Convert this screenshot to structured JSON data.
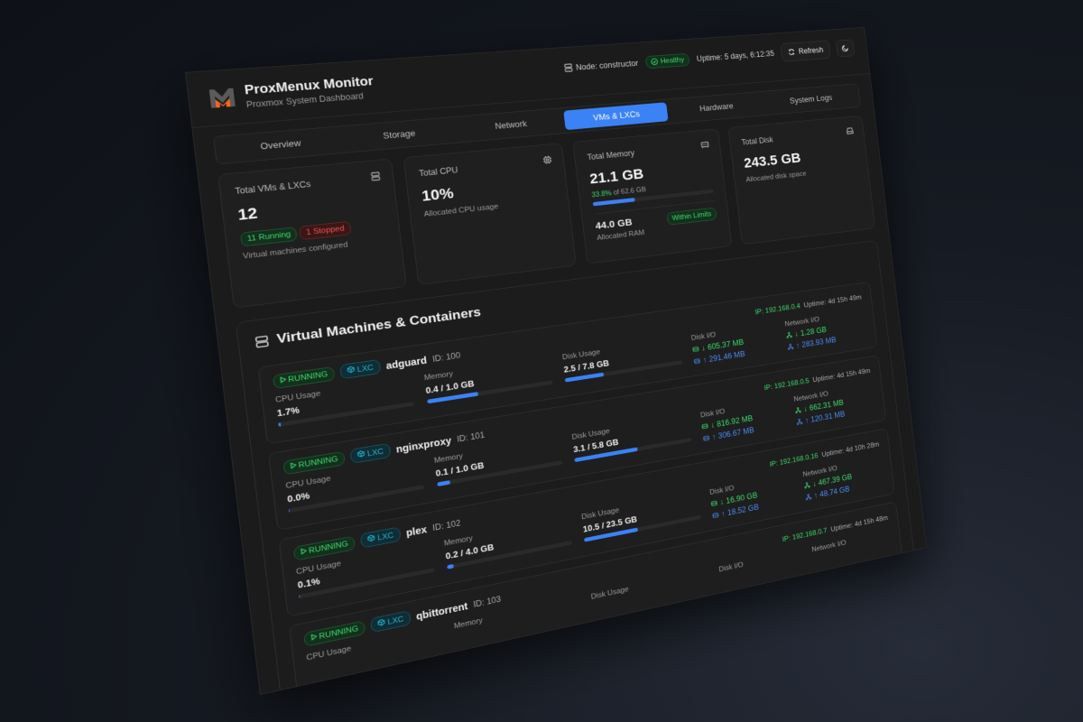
{
  "app": {
    "title": "ProxMenux Monitor",
    "subtitle": "Proxmox System Dashboard"
  },
  "header": {
    "node": "Node: constructor",
    "health": "Healthy",
    "uptime": "Uptime: 5 days, 6:12:35",
    "refresh": "Refresh"
  },
  "tabs": [
    {
      "label": "Overview"
    },
    {
      "label": "Storage"
    },
    {
      "label": "Network"
    },
    {
      "label": "VMs & LXCs",
      "active": true
    },
    {
      "label": "Hardware"
    },
    {
      "label": "System Logs"
    }
  ],
  "stats": {
    "vms": {
      "label": "Total VMs & LXCs",
      "value": "12",
      "running": "11 Running",
      "stopped": "1 Stopped",
      "note": "Virtual machines configured"
    },
    "cpu": {
      "label": "Total CPU",
      "value": "10%",
      "note": "Allocated CPU usage"
    },
    "memory": {
      "label": "Total Memory",
      "value": "21.1 GB",
      "pct_text": "33.8%",
      "of_text": " of 62.6 GB",
      "pct": 33.8,
      "allocated": "44.0 GB",
      "allocated_note": "Allocated RAM",
      "status": "Within Limits"
    },
    "disk": {
      "label": "Total Disk",
      "value": "243.5 GB",
      "note": "Allocated disk space"
    }
  },
  "panel": {
    "title": "Virtual Machines & Containers"
  },
  "labels": {
    "cpu": "CPU Usage",
    "memory": "Memory",
    "disk": "Disk Usage",
    "disk_io": "Disk I/O",
    "net_io": "Network I/O"
  },
  "vms": [
    {
      "status": "RUNNING",
      "type": "LXC",
      "name": "adguard",
      "id": "ID: 100",
      "ip": "IP: 192.168.0.4",
      "uptime": "Uptime: 4d 15h 49m",
      "cpu": "1.7%",
      "cpu_pct": 1.7,
      "mem": "0.4 / 1.0 GB",
      "mem_pct": 40,
      "disk": "2.5 / 7.8 GB",
      "disk_pct": 32,
      "disk_read": "605.37 MB",
      "disk_write": "291.46 MB",
      "net_in": "1.28 GB",
      "net_out": "283.93 MB"
    },
    {
      "status": "RUNNING",
      "type": "LXC",
      "name": "nginxproxy",
      "id": "ID: 101",
      "ip": "IP: 192.168.0.5",
      "uptime": "Uptime: 4d 15h 49m",
      "cpu": "0.0%",
      "cpu_pct": 0,
      "mem": "0.1 / 1.0 GB",
      "mem_pct": 10,
      "disk": "3.1 / 5.8 GB",
      "disk_pct": 53,
      "disk_read": "816.92 MB",
      "disk_write": "306.67 MB",
      "net_in": "662.31 MB",
      "net_out": "120.31 MB"
    },
    {
      "status": "RUNNING",
      "type": "LXC",
      "name": "plex",
      "id": "ID: 102",
      "ip": "IP: 192.168.0.16",
      "uptime": "Uptime: 4d 10h 28m",
      "cpu": "0.1%",
      "cpu_pct": 0.1,
      "mem": "0.2 / 4.0 GB",
      "mem_pct": 5,
      "disk": "10.5 / 23.5 GB",
      "disk_pct": 45,
      "disk_read": "16.90 GB",
      "disk_write": "18.52 GB",
      "net_in": "467.39 GB",
      "net_out": "48.74 GB"
    },
    {
      "status": "RUNNING",
      "type": "LXC",
      "name": "qbittorrent",
      "id": "ID: 103",
      "ip": "IP: 192.168.0.7",
      "uptime": "Uptime: 4d 15h 48m"
    }
  ],
  "colors": {
    "accent": "#3b82f6",
    "success": "#3ddc6b",
    "danger": "#f05252",
    "lxc": "#22b8d6",
    "logo_gray": "#5a5a5a",
    "logo_orange": "#f26522"
  }
}
